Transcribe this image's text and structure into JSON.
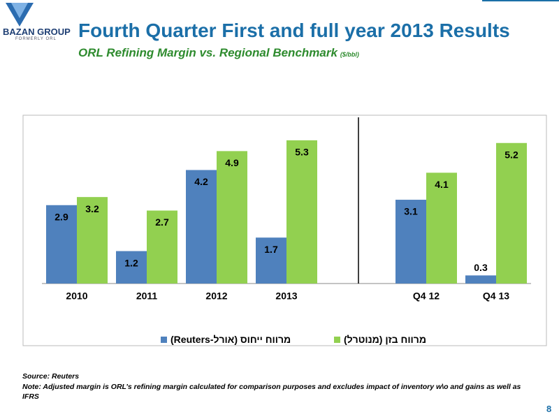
{
  "logo": {
    "name": "BAZAN GROUP",
    "sub": "FORMERLY ORL"
  },
  "chart_data": {
    "type": "bar",
    "title": "Fourth Quarter First and full year 2013 Results",
    "subtitle": "ORL Refining Margin vs. Regional Benchmark",
    "unit": "($/bbl)",
    "categories": [
      "2010",
      "2011",
      "2012",
      "2013",
      null,
      "Q4 12",
      "Q4 13"
    ],
    "series": [
      {
        "name": "מרווח ייחוס (אורל-Reuters)",
        "color": "#4f81bd",
        "values": [
          2.9,
          1.2,
          4.2,
          1.7,
          null,
          3.1,
          0.3
        ]
      },
      {
        "name": "מרווח בזן (מנוטרל)",
        "color": "#92d050",
        "values": [
          3.2,
          2.7,
          4.9,
          5.3,
          null,
          4.1,
          5.2
        ]
      }
    ],
    "legend": "bottom"
  },
  "footer": {
    "source": "Source: Reuters",
    "note": "Note: Adjusted margin is ORL’s refining margin calculated for comparison purposes and excludes impact of inventory w\\o and gains as well as IFRS",
    "page": "8"
  }
}
